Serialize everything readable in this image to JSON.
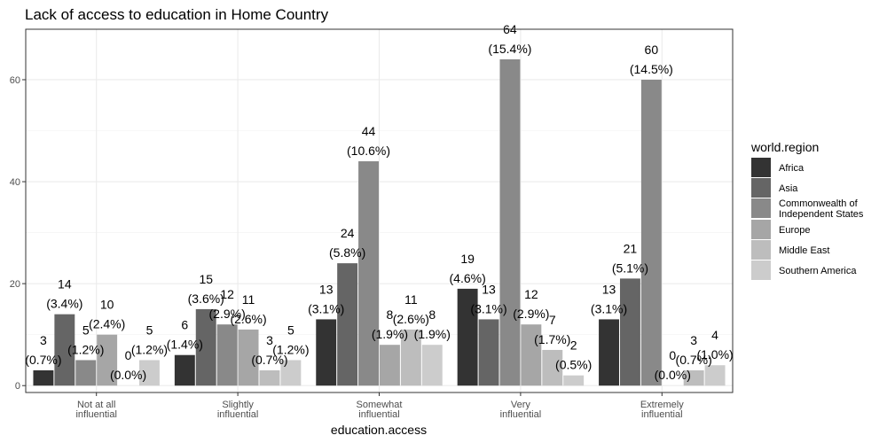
{
  "chart_data": {
    "type": "bar",
    "title": "Lack of access to education in Home Country",
    "xlabel": "education.access",
    "ylabel": "",
    "ylim": [
      0,
      70
    ],
    "yticks": [
      0,
      20,
      40,
      60
    ],
    "grid": true,
    "legend_position": "right",
    "legend_title": "world.region",
    "categories": [
      [
        "Not at all",
        "influential"
      ],
      [
        "Slightly",
        "influential"
      ],
      [
        "Somewhat",
        "influential"
      ],
      [
        "Very",
        "influential"
      ],
      [
        "Extremely",
        "influential"
      ]
    ],
    "series": [
      {
        "name": [
          "Africa"
        ],
        "color": "#333333",
        "values": [
          3,
          6,
          13,
          19,
          13
        ],
        "labels": [
          "(0.7%)",
          "(1.4%)",
          "(3.1%)",
          "(4.6%)",
          "(3.1%)"
        ]
      },
      {
        "name": [
          "Asia"
        ],
        "color": "#656565",
        "values": [
          14,
          15,
          24,
          13,
          21
        ],
        "labels": [
          "(3.4%)",
          "(3.6%)",
          "(5.8%)",
          "(3.1%)",
          "(5.1%)"
        ]
      },
      {
        "name": [
          "Commonwealth of",
          "Independent States"
        ],
        "color": "#898989",
        "values": [
          5,
          12,
          44,
          64,
          60
        ],
        "labels": [
          "(1.2%)",
          "(2.9%)",
          "(10.6%)",
          "(15.4%)",
          "(14.5%)"
        ]
      },
      {
        "name": [
          "Europe"
        ],
        "color": "#a6a6a6",
        "values": [
          10,
          11,
          8,
          12,
          0
        ],
        "labels": [
          "(2.4%)",
          "(2.6%)",
          "(1.9%)",
          "(2.9%)",
          "(0.0%)"
        ]
      },
      {
        "name": [
          "Middle East"
        ],
        "color": "#bdbdbd",
        "values": [
          0,
          3,
          11,
          7,
          3
        ],
        "labels": [
          "(0.0%)",
          "(0.7%)",
          "(2.6%)",
          "(1.7%)",
          "(0.7%)"
        ]
      },
      {
        "name": [
          "Southern America"
        ],
        "color": "#cccccc",
        "values": [
          5,
          5,
          8,
          2,
          4
        ],
        "labels": [
          "(1.2%)",
          "(1.2%)",
          "(1.9%)",
          "(0.5%)",
          "(1.0%)"
        ]
      }
    ]
  }
}
